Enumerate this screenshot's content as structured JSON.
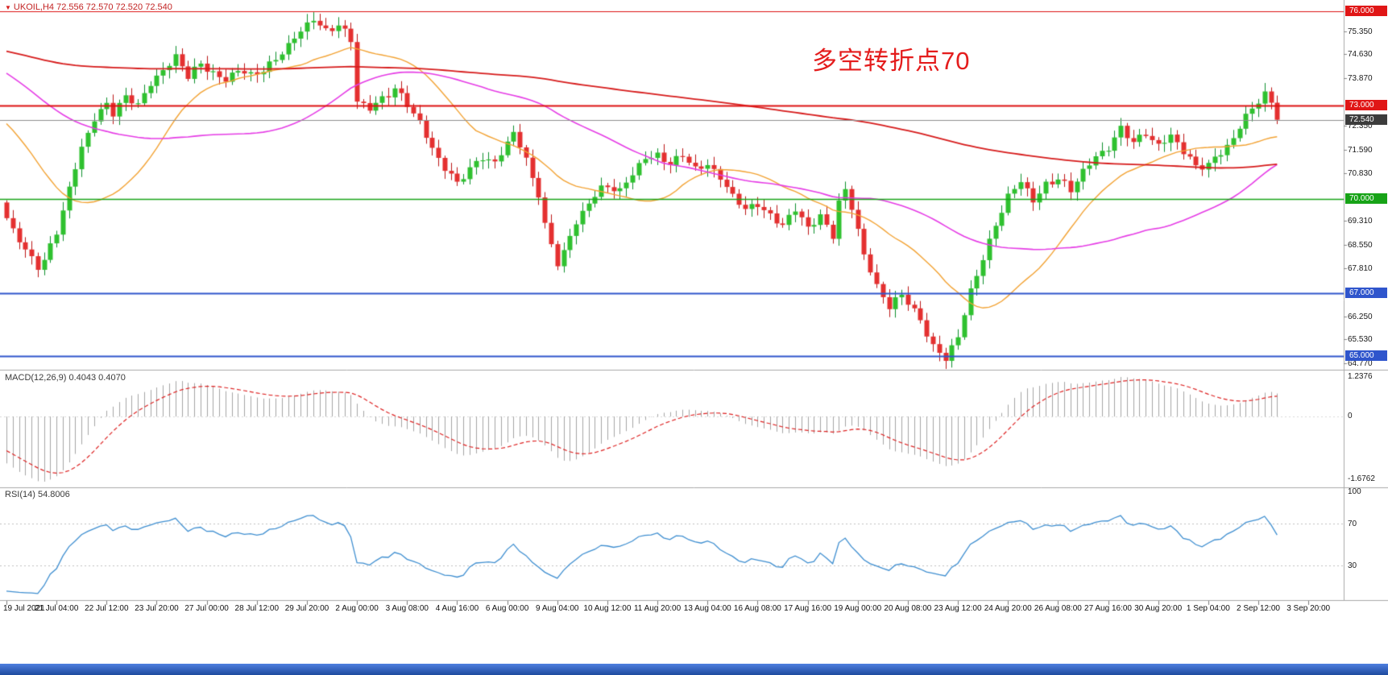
{
  "app": {
    "symbol_info": "UKOIL,H4 72.556 72.570 72.520 72.540"
  },
  "annotation": {
    "text": "多空转折点70"
  },
  "colors": {
    "background": "#ffffff",
    "up": "#2fc12f",
    "up_stroke": "#0c8f2c",
    "down": "#e43030",
    "down_stroke": "#bb1515",
    "ma_fast": "#f2a233",
    "ma_mid": "#e53ce5",
    "ma_slow": "#d61b1b",
    "macd_hist": "#a5a5a5",
    "macd_signal": "#dd2222",
    "rsi_line": "#3e8ed0",
    "separator": "#a8a8a8",
    "axis_text": "#1a1a1a",
    "line_red": "#dd1111",
    "line_green": "#17a317",
    "line_blue": "#2f55cc",
    "current_price_line": "#8e8e8e",
    "current_badge_bg": "#3c3c3c",
    "symbol_text": "#c22323",
    "annotation_text": "#e41c1c",
    "bottom_bar": "#2b57b0"
  },
  "chart_data": {
    "type": "candlestick",
    "title": "UKOIL,H4",
    "timeframe": "H4",
    "visible_bars": 204,
    "bars_per_label": 8,
    "price_axis": {
      "top_price": 76.36,
      "bottom_price": 64.59,
      "ticks": [
        {
          "value": 75.35,
          "label": "75.350"
        },
        {
          "value": 74.63,
          "label": "74.630"
        },
        {
          "value": 73.87,
          "label": "73.870"
        },
        {
          "value": 72.35,
          "label": "72.350"
        },
        {
          "value": 71.59,
          "label": "71.590"
        },
        {
          "value": 70.83,
          "label": "70.830"
        },
        {
          "value": 69.31,
          "label": "69.310"
        },
        {
          "value": 68.55,
          "label": "68.550"
        },
        {
          "value": 67.81,
          "label": "67.810"
        },
        {
          "value": 66.25,
          "label": "66.250"
        },
        {
          "value": 65.53,
          "label": "65.530"
        },
        {
          "value": 64.77,
          "label": "64.770"
        }
      ],
      "badges": [
        {
          "value": 76.0,
          "label": "76.000",
          "type": "red"
        },
        {
          "value": 73.0,
          "label": "73.000",
          "type": "red"
        },
        {
          "value": 72.54,
          "label": "72.540",
          "type": "current"
        },
        {
          "value": 70.0,
          "label": "70.000",
          "type": "green"
        },
        {
          "value": 67.0,
          "label": "67.000",
          "type": "blue"
        },
        {
          "value": 65.0,
          "label": "65.000",
          "type": "blue"
        }
      ]
    },
    "hlines": [
      {
        "price": 76.0,
        "color": "line_red",
        "width": 1.2
      },
      {
        "price": 73.0,
        "color": "line_red",
        "width": 2
      },
      {
        "price": 72.54,
        "color": "current_price_line",
        "width": 1
      },
      {
        "price": 70.0,
        "color": "line_green",
        "width": 1.6
      },
      {
        "price": 67.0,
        "color": "line_blue",
        "width": 2
      },
      {
        "price": 65.0,
        "color": "line_blue",
        "width": 2
      }
    ],
    "close_price_anchors": [
      [
        0,
        69.4
      ],
      [
        1,
        69.0
      ],
      [
        3,
        68.3
      ],
      [
        5,
        67.9
      ],
      [
        6,
        68.1
      ],
      [
        8,
        69.0
      ],
      [
        10,
        70.3
      ],
      [
        12,
        71.6
      ],
      [
        14,
        72.6
      ],
      [
        16,
        73.1
      ],
      [
        17,
        72.8
      ],
      [
        19,
        73.2
      ],
      [
        21,
        73.0
      ],
      [
        23,
        73.7
      ],
      [
        25,
        74.2
      ],
      [
        27,
        74.5
      ],
      [
        29,
        73.9
      ],
      [
        31,
        74.3
      ],
      [
        33,
        74.1
      ],
      [
        35,
        73.8
      ],
      [
        37,
        74.1
      ],
      [
        39,
        73.9
      ],
      [
        41,
        74.2
      ],
      [
        43,
        74.5
      ],
      [
        45,
        74.9
      ],
      [
        47,
        75.3
      ],
      [
        49,
        75.8
      ],
      [
        51,
        75.4
      ],
      [
        53,
        75.6
      ],
      [
        55,
        75.0
      ],
      [
        56,
        73.1
      ],
      [
        58,
        72.9
      ],
      [
        60,
        73.3
      ],
      [
        62,
        73.5
      ],
      [
        64,
        73.0
      ],
      [
        66,
        72.4
      ],
      [
        68,
        71.7
      ],
      [
        70,
        71.0
      ],
      [
        72,
        70.5
      ],
      [
        74,
        70.9
      ],
      [
        76,
        71.4
      ],
      [
        78,
        71.2
      ],
      [
        80,
        71.8
      ],
      [
        81,
        72.1
      ],
      [
        83,
        71.2
      ],
      [
        85,
        70.2
      ],
      [
        86,
        69.2
      ],
      [
        88,
        68.0
      ],
      [
        89,
        68.3
      ],
      [
        91,
        69.2
      ],
      [
        93,
        69.9
      ],
      [
        95,
        70.4
      ],
      [
        96,
        70.5
      ],
      [
        98,
        70.2
      ],
      [
        100,
        70.8
      ],
      [
        102,
        71.3
      ],
      [
        104,
        71.5
      ],
      [
        106,
        71.1
      ],
      [
        108,
        71.4
      ],
      [
        110,
        70.9
      ],
      [
        112,
        71.2
      ],
      [
        114,
        70.7
      ],
      [
        116,
        70.1
      ],
      [
        118,
        69.6
      ],
      [
        120,
        69.9
      ],
      [
        122,
        69.5
      ],
      [
        124,
        69.2
      ],
      [
        126,
        69.6
      ],
      [
        128,
        69.1
      ],
      [
        130,
        69.5
      ],
      [
        132,
        68.9
      ],
      [
        133,
        69.9
      ],
      [
        134,
        70.2
      ],
      [
        135,
        69.7
      ],
      [
        136,
        69.0
      ],
      [
        137,
        68.2
      ],
      [
        139,
        67.3
      ],
      [
        141,
        66.6
      ],
      [
        143,
        66.9
      ],
      [
        144,
        66.7
      ],
      [
        146,
        66.1
      ],
      [
        148,
        65.4
      ],
      [
        150,
        64.9
      ],
      [
        152,
        65.6
      ],
      [
        154,
        67.0
      ],
      [
        156,
        68.2
      ],
      [
        158,
        69.2
      ],
      [
        160,
        70.1
      ],
      [
        162,
        70.5
      ],
      [
        164,
        70.0
      ],
      [
        166,
        70.5
      ],
      [
        168,
        70.7
      ],
      [
        170,
        70.2
      ],
      [
        172,
        70.9
      ],
      [
        174,
        71.4
      ],
      [
        176,
        71.7
      ],
      [
        178,
        72.2
      ],
      [
        180,
        71.8
      ],
      [
        182,
        72.1
      ],
      [
        184,
        71.8
      ],
      [
        186,
        72.0
      ],
      [
        188,
        71.5
      ],
      [
        190,
        71.0
      ],
      [
        192,
        71.2
      ],
      [
        194,
        71.5
      ],
      [
        196,
        71.9
      ],
      [
        198,
        72.6
      ],
      [
        200,
        73.2
      ],
      [
        201,
        73.4
      ],
      [
        202,
        73.1
      ],
      [
        203,
        72.54
      ]
    ],
    "prehistory_close_anchors": [
      [
        -130,
        74.0
      ],
      [
        -110,
        75.1
      ],
      [
        -95,
        76.3
      ],
      [
        -80,
        75.2
      ],
      [
        -65,
        74.6
      ],
      [
        -50,
        75.6
      ],
      [
        -40,
        76.2
      ],
      [
        -30,
        74.8
      ],
      [
        -20,
        73.2
      ],
      [
        -12,
        73.8
      ],
      [
        -6,
        72.0
      ],
      [
        -2,
        70.5
      ],
      [
        -1,
        69.9
      ]
    ],
    "last_close": 72.54,
    "moving_averages": [
      {
        "period": 20,
        "color": "ma_fast",
        "width": 1.4
      },
      {
        "period": 50,
        "color": "ma_mid",
        "width": 1.6
      },
      {
        "period": 200,
        "color": "ma_slow",
        "width": 1.8
      }
    ],
    "macd": {
      "label": "MACD(12,26,9) 0.4043 0.4070",
      "fast": 12,
      "slow": 26,
      "signal": 9,
      "axis_top": "1.2376",
      "axis_zero": "0",
      "axis_bottom": "-1.6762"
    },
    "rsi": {
      "label": "RSI(14) 54.8006",
      "period": 14,
      "levels": [
        70,
        30
      ],
      "axis_labels": [
        {
          "value": 100,
          "label": "100"
        },
        {
          "value": 70,
          "label": "70"
        },
        {
          "value": 30,
          "label": "30"
        }
      ]
    },
    "time_labels": [
      "19 Jul 2021",
      "21 Jul 04:00",
      "22 Jul 12:00",
      "23 Jul 20:00",
      "27 Jul 00:00",
      "28 Jul 12:00",
      "29 Jul 20:00",
      "2 Aug 00:00",
      "3 Aug 08:00",
      "4 Aug 16:00",
      "6 Aug 00:00",
      "9 Aug 04:00",
      "10 Aug 12:00",
      "11 Aug 20:00",
      "13 Aug 04:00",
      "16 Aug 08:00",
      "17 Aug 16:00",
      "19 Aug 00:00",
      "20 Aug 08:00",
      "23 Aug 12:00",
      "24 Aug 20:00",
      "26 Aug 08:00",
      "27 Aug 16:00",
      "30 Aug 20:00",
      "1 Sep 04:00",
      "2 Sep 12:00",
      "3 Sep 20:00"
    ]
  }
}
